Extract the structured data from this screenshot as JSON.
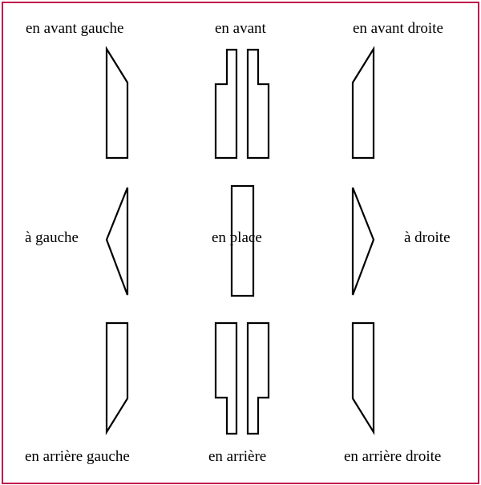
{
  "colors": {
    "frame": "#c0144c",
    "stroke": "#000000"
  },
  "labels": {
    "forward_left": "en avant gauche",
    "forward": "en avant",
    "forward_right": "en avant droite",
    "left": "à gauche",
    "in_place": "en place",
    "right": "à droite",
    "backward_left": "en arrière gauche",
    "backward": "en arrière",
    "backward_right": "en arrière droite"
  }
}
